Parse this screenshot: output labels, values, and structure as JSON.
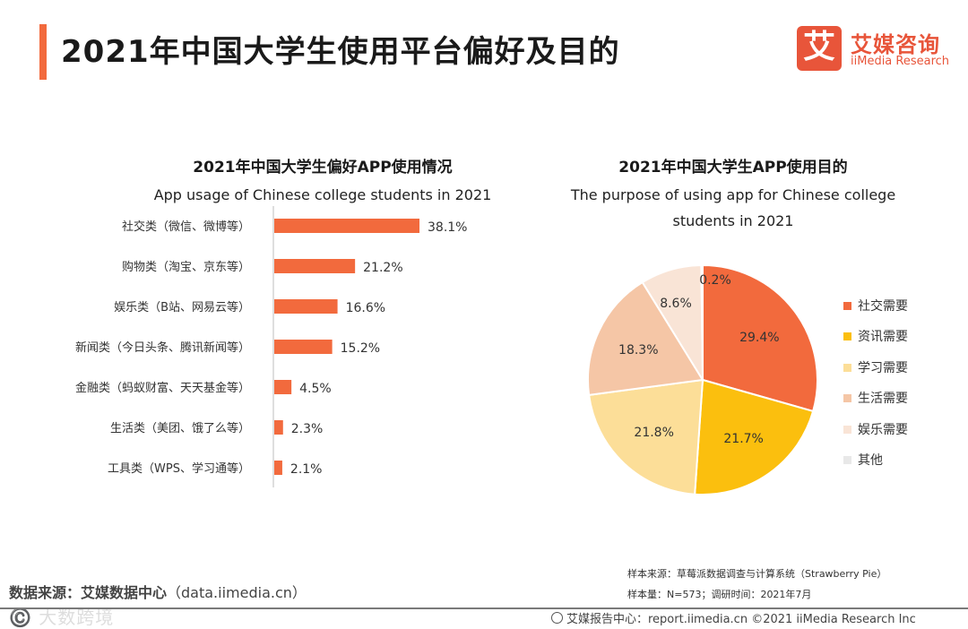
{
  "page": {
    "title": "2021年中国大学生使用平台偏好及目的",
    "accent_color": "#f26a3d"
  },
  "brand": {
    "logo_mark": "艾",
    "name_cn": "艾媒咨询",
    "name_en": "iiMedia Research",
    "color": "#e8553a"
  },
  "chart_data": [
    {
      "type": "bar",
      "orientation": "horizontal",
      "title": "2021年中国大学生偏好APP使用情况",
      "subtitle": "App usage of Chinese college students in 2021",
      "categories": [
        "社交类（微信、微博等）",
        "购物类（淘宝、京东等）",
        "娱乐类（B站、网易云等）",
        "新闻类（今日头条、腾讯新闻等）",
        "金融类（蚂蚁财富、天天基金等）",
        "生活类（美团、饿了么等）",
        "工具类（WPS、学习通等）"
      ],
      "values": [
        38.1,
        21.2,
        16.6,
        15.2,
        4.5,
        2.3,
        2.1
      ],
      "value_labels": [
        "38.1%",
        "21.2%",
        "16.6%",
        "15.2%",
        "4.5%",
        "2.3%",
        "2.1%"
      ],
      "unit": "%",
      "xlim": [
        0,
        40
      ],
      "bar_color": "#f26a3d",
      "xlabel": "",
      "ylabel": ""
    },
    {
      "type": "pie",
      "title": "2021年中国大学生APP使用目的",
      "subtitle_lines": [
        "The purpose of using app for Chinese college",
        "students in 2021"
      ],
      "labels": [
        "社交需要",
        "资讯需要",
        "学习需要",
        "生活需要",
        "娱乐需要",
        "其他"
      ],
      "values": [
        29.4,
        21.7,
        21.8,
        18.3,
        8.6,
        0.2
      ],
      "value_labels": [
        "29.4%",
        "21.7%",
        "21.8%",
        "18.3%",
        "8.6%",
        "0.2%"
      ],
      "colors": [
        "#f26a3d",
        "#fbbf0e",
        "#fcde98",
        "#f5c6a6",
        "#f9e4d6",
        "#e8e8e8"
      ],
      "label_colors": [
        "#333333",
        "#333333",
        "#333333",
        "#333333",
        "#333333",
        "#333333"
      ],
      "legend_position": "right"
    }
  ],
  "sources": {
    "left_label": "数据来源：艾媒数据中心",
    "left_url": "（data.iimedia.cn）",
    "sample_source": "样本来源：草莓派数据调查与计算系统（Strawberry Pie）",
    "sample_size": "样本量：N=573；调研时间：2021年7月"
  },
  "footer": {
    "text": "艾媒报告中心：report.iimedia.cn   ©2021  iiMedia Research  Inc"
  },
  "watermark": {
    "text": "©️ 大数跨境"
  }
}
